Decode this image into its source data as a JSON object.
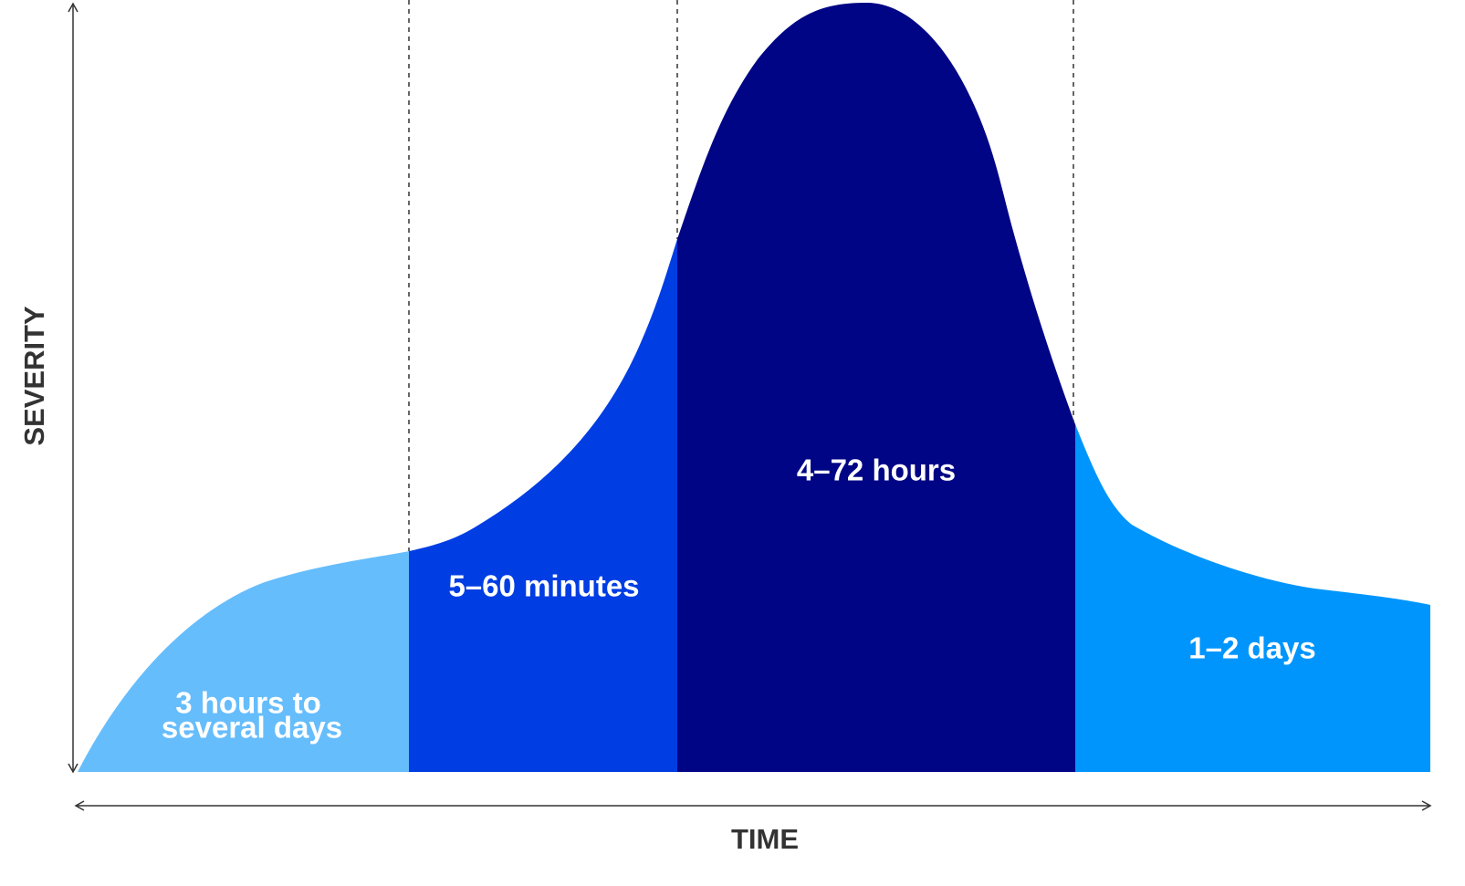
{
  "axes": {
    "y_label": "SEVERITY",
    "x_label": "TIME"
  },
  "regions": [
    {
      "label_lines": [
        "3 hours to",
        "several days"
      ]
    },
    {
      "label_lines": [
        "5–60 minutes"
      ]
    },
    {
      "label_lines": [
        "4–72 hours"
      ]
    },
    {
      "label_lines": [
        "1–2 days"
      ]
    }
  ]
}
